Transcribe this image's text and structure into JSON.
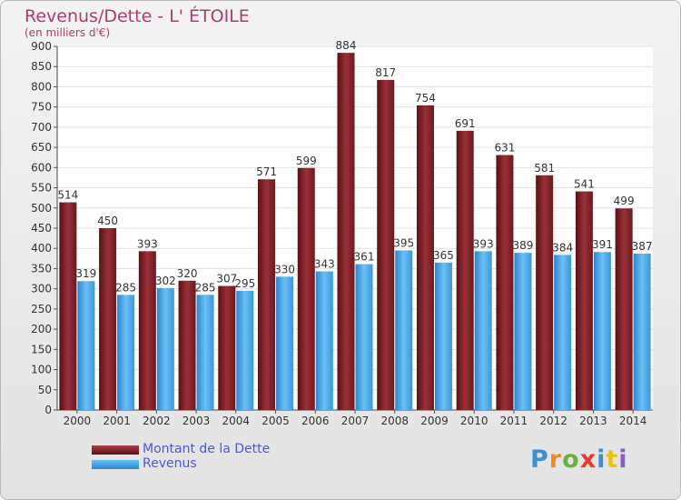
{
  "title": "Revenus/Dette - L' ÉTOILE",
  "subtitle": "(en milliers d'€)",
  "legend": {
    "debt": "Montant de la Dette",
    "revenue": "Revenus"
  },
  "logo": {
    "text": "Proxiti",
    "letter_colors": [
      "#3a8fd8",
      "#f08a1c",
      "#6ab33a",
      "#e23b2e",
      "#3a8fd8",
      "#e8c21c",
      "#8a5cc8"
    ]
  },
  "colors": {
    "debt_top": "#a84048",
    "debt_bottom": "#5a0f14",
    "revenue_top": "#6cc0f4",
    "revenue_bottom": "#2b86d0",
    "title": "#b03a6a",
    "legend_text": "#4a57d8"
  },
  "chart_data": {
    "type": "bar",
    "categories": [
      "2000",
      "2001",
      "2002",
      "2003",
      "2004",
      "2005",
      "2006",
      "2007",
      "2008",
      "2009",
      "2010",
      "2011",
      "2012",
      "2013",
      "2014"
    ],
    "series": [
      {
        "name": "Montant de la Dette",
        "values": [
          514,
          450,
          393,
          320,
          307,
          571,
          599,
          884,
          817,
          754,
          691,
          631,
          581,
          541,
          499
        ]
      },
      {
        "name": "Revenus",
        "values": [
          319,
          285,
          302,
          285,
          295,
          330,
          343,
          361,
          395,
          365,
          393,
          389,
          384,
          391,
          387
        ]
      }
    ],
    "ylim": [
      0,
      900
    ],
    "ytick_step": 50,
    "grid": true,
    "legend_position": "bottom-left"
  }
}
